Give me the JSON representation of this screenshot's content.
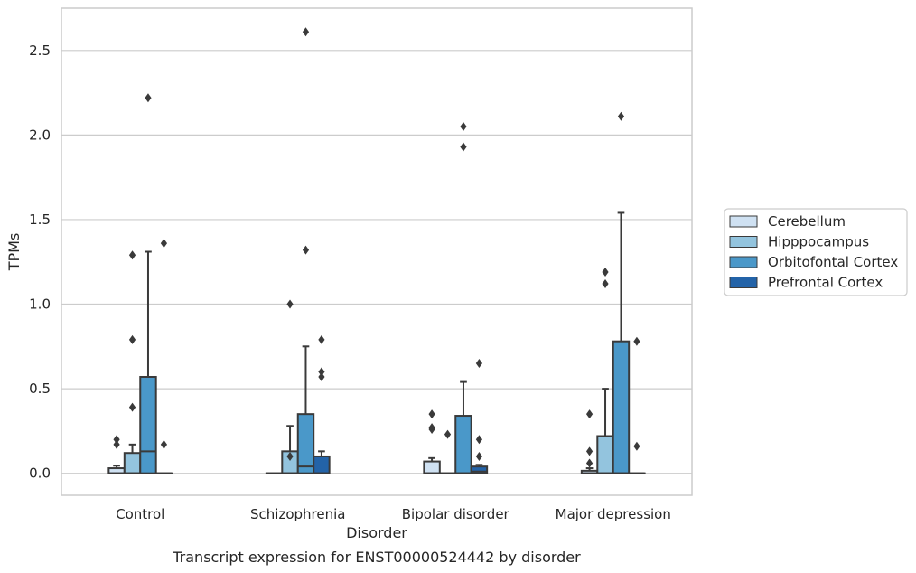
{
  "caption": "Transcript expression for ENST00000524442 by disorder",
  "chart_data": {
    "type": "box",
    "title": "",
    "xlabel": "Disorder",
    "ylabel": "TPMs",
    "ylim": [
      -0.13,
      2.75
    ],
    "yticks": [
      0.0,
      0.5,
      1.0,
      1.5,
      2.0,
      2.5
    ],
    "ytick_labels": [
      "0.0",
      "0.5",
      "1.0",
      "1.5",
      "2.0",
      "2.5"
    ],
    "categories": [
      "Control",
      "Schizophrenia",
      "Bipolar disorder",
      "Major depression"
    ],
    "grid": "horizontal",
    "legend_position": "right",
    "series": [
      {
        "name": "Cerebellum",
        "color": "#cfe1f2",
        "boxes": [
          {
            "q1": 0.0,
            "median": 0.0,
            "q3": 0.03,
            "whisker_low": 0.0,
            "whisker_high": 0.045,
            "outliers": [
              0.17,
              0.2
            ]
          },
          {
            "q1": 0.0,
            "median": 0.0,
            "q3": 0.0,
            "whisker_low": 0.0,
            "whisker_high": 0.0,
            "outliers": []
          },
          {
            "q1": 0.0,
            "median": 0.0,
            "q3": 0.07,
            "whisker_low": 0.0,
            "whisker_high": 0.09,
            "outliers": [
              0.26,
              0.27,
              0.35
            ]
          },
          {
            "q1": 0.0,
            "median": 0.0,
            "q3": 0.015,
            "whisker_low": 0.0,
            "whisker_high": 0.03,
            "outliers": [
              0.06,
              0.13,
              0.35
            ]
          }
        ]
      },
      {
        "name": "Hipppocampus",
        "color": "#93c4de",
        "boxes": [
          {
            "q1": 0.0,
            "median": 0.0,
            "q3": 0.12,
            "whisker_low": 0.0,
            "whisker_high": 0.17,
            "outliers": [
              0.39,
              0.79,
              1.29
            ]
          },
          {
            "q1": 0.0,
            "median": 0.0,
            "q3": 0.13,
            "whisker_low": 0.0,
            "whisker_high": 0.28,
            "outliers": [
              0.1,
              1.0
            ]
          },
          {
            "q1": 0.0,
            "median": 0.0,
            "q3": 0.0,
            "whisker_low": 0.0,
            "whisker_high": 0.0,
            "outliers": [
              0.23
            ]
          },
          {
            "q1": 0.0,
            "median": 0.0,
            "q3": 0.22,
            "whisker_low": 0.0,
            "whisker_high": 0.5,
            "outliers": [
              1.12,
              1.19
            ]
          }
        ]
      },
      {
        "name": "Orbitofontal Cortex",
        "color": "#4a98c9",
        "boxes": [
          {
            "q1": 0.0,
            "median": 0.13,
            "q3": 0.57,
            "whisker_low": 0.0,
            "whisker_high": 1.31,
            "outliers": [
              2.22
            ]
          },
          {
            "q1": 0.0,
            "median": 0.04,
            "q3": 0.35,
            "whisker_low": 0.0,
            "whisker_high": 0.75,
            "outliers": [
              1.32,
              2.61
            ]
          },
          {
            "q1": 0.0,
            "median": 0.0,
            "q3": 0.34,
            "whisker_low": 0.0,
            "whisker_high": 0.54,
            "outliers": [
              1.93,
              2.05
            ]
          },
          {
            "q1": 0.0,
            "median": 0.0,
            "q3": 0.78,
            "whisker_low": 0.0,
            "whisker_high": 1.54,
            "outliers": [
              2.11
            ]
          }
        ]
      },
      {
        "name": "Prefrontal Cortex",
        "color": "#2363a8",
        "boxes": [
          {
            "q1": 0.0,
            "median": 0.0,
            "q3": 0.0,
            "whisker_low": 0.0,
            "whisker_high": 0.0,
            "outliers": [
              0.17,
              1.36
            ]
          },
          {
            "q1": 0.0,
            "median": 0.0,
            "q3": 0.1,
            "whisker_low": 0.0,
            "whisker_high": 0.13,
            "outliers": [
              0.57,
              0.6,
              0.79
            ]
          },
          {
            "q1": 0.0,
            "median": 0.01,
            "q3": 0.04,
            "whisker_low": 0.0,
            "whisker_high": 0.05,
            "outliers": [
              0.1,
              0.2,
              0.65
            ]
          },
          {
            "q1": 0.0,
            "median": 0.0,
            "q3": 0.0,
            "whisker_low": 0.0,
            "whisker_high": 0.0,
            "outliers": [
              0.16,
              0.78
            ]
          }
        ]
      }
    ]
  }
}
